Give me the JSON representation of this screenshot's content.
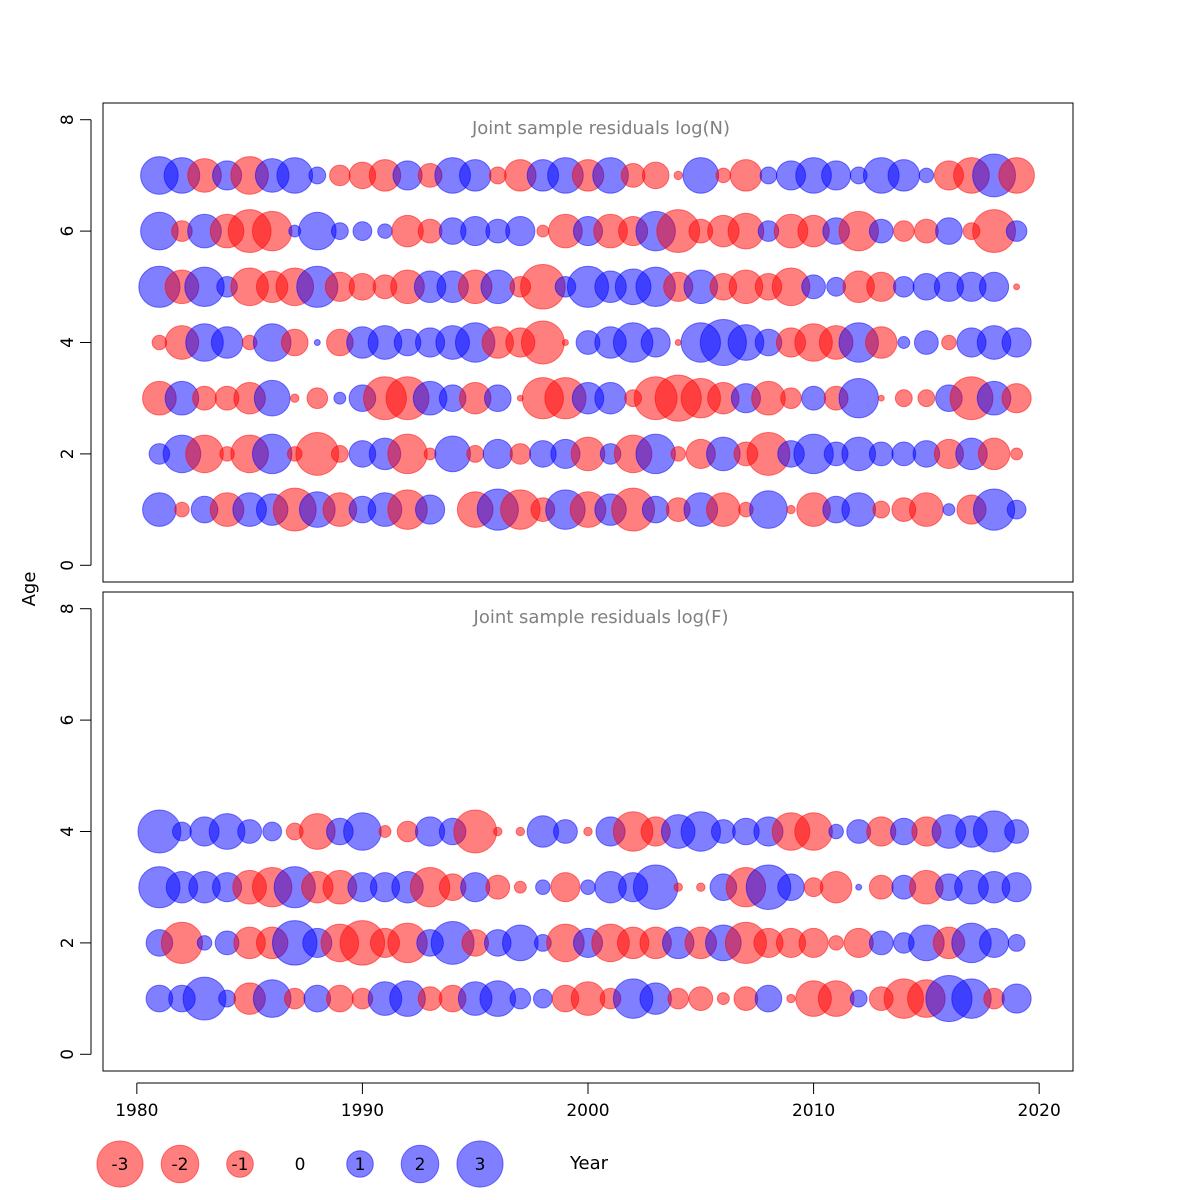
{
  "y_axis_label": "Age",
  "x_axis_label": "Year",
  "colors": {
    "negative": "#ff0000",
    "positive": "#0000ff",
    "bubble_opacity": 0.5,
    "title_color": "#808080"
  },
  "legend": {
    "items": [
      {
        "label": "-3",
        "value": -3
      },
      {
        "label": "-2",
        "value": -2
      },
      {
        "label": "-1",
        "value": -1
      },
      {
        "label": "0",
        "value": 0
      },
      {
        "label": "1",
        "value": 1
      },
      {
        "label": "2",
        "value": 2
      },
      {
        "label": "3",
        "value": 3
      }
    ]
  },
  "chart_data": [
    {
      "type": "scatter",
      "subtype": "bubble",
      "title": "Joint sample residuals log(N)",
      "xlabel": "Year",
      "ylabel": "Age",
      "xlim": [
        1978.5,
        2021.5
      ],
      "ylim": [
        -0.3,
        8.3
      ],
      "x_ticks": [
        1980,
        1990,
        2000,
        2010,
        2020
      ],
      "y_ticks": [
        0,
        2,
        4,
        6,
        8
      ],
      "x_tick_labels_shown": false,
      "years": [
        1981,
        1982,
        1983,
        1984,
        1985,
        1986,
        1987,
        1988,
        1989,
        1990,
        1991,
        1992,
        1993,
        1994,
        1995,
        1996,
        1997,
        1998,
        1999,
        2000,
        2001,
        2002,
        2003,
        2004,
        2005,
        2006,
        2007,
        2008,
        2009,
        2010,
        2011,
        2012,
        2013,
        2014,
        2015,
        2016,
        2017,
        2018,
        2019
      ],
      "ages": [
        1,
        2,
        3,
        4,
        5,
        6,
        7
      ],
      "residuals": {
        "1": [
          1.6,
          -0.3,
          1.0,
          -1.6,
          1.6,
          1.4,
          -2.6,
          1.8,
          -1.6,
          1.0,
          1.6,
          -2.2,
          1.2,
          0.0,
          -1.8,
          2.4,
          -2.2,
          -0.8,
          2.2,
          -1.8,
          1.4,
          -2.6,
          1.0,
          -0.8,
          1.6,
          -1.6,
          -0.3,
          2.0,
          -0.1,
          -1.6,
          1.0,
          1.6,
          -0.4,
          -0.8,
          -1.6,
          0.2,
          -1.2,
          2.4,
          0.5
        ],
        "2": [
          0.6,
          2.0,
          -2.0,
          -0.3,
          -2.0,
          2.2,
          -0.3,
          -2.6,
          -0.4,
          1.0,
          1.4,
          -2.2,
          -0.2,
          1.8,
          -0.4,
          1.2,
          -0.6,
          1.0,
          1.2,
          -1.6,
          0.6,
          -2.0,
          2.2,
          -0.3,
          -1.2,
          1.6,
          -0.8,
          -2.6,
          1.0,
          2.2,
          0.8,
          1.6,
          0.8,
          0.8,
          1.0,
          -1.2,
          1.4,
          -1.4,
          -0.2
        ],
        "3": [
          -1.6,
          1.6,
          -0.8,
          -0.8,
          -1.4,
          1.8,
          -0.1,
          -0.6,
          0.2,
          1.0,
          -2.6,
          -2.6,
          1.6,
          1.0,
          -1.4,
          1.0,
          -0.05,
          -2.4,
          -2.4,
          1.4,
          1.4,
          -0.4,
          -2.6,
          -3.0,
          -2.2,
          -1.4,
          1.2,
          -1.6,
          -0.6,
          0.8,
          -0.8,
          2.2,
          -0.05,
          -0.4,
          -0.4,
          1.0,
          -2.6,
          1.6,
          -1.2
        ],
        "4": [
          -0.3,
          -1.6,
          2.0,
          1.4,
          -0.3,
          2.0,
          -1.0,
          0.05,
          -1.0,
          1.4,
          1.6,
          1.0,
          1.2,
          1.6,
          2.2,
          -1.4,
          -1.2,
          -2.6,
          -0.05,
          0.8,
          1.4,
          2.2,
          1.2,
          -0.05,
          2.2,
          3.0,
          1.8,
          1.0,
          -1.2,
          -2.0,
          -1.6,
          2.2,
          -1.4,
          0.2,
          0.8,
          -0.3,
          1.2,
          1.6,
          1.2
        ],
        "5": [
          2.4,
          -1.6,
          2.2,
          0.6,
          -2.0,
          -1.4,
          -2.0,
          2.4,
          -1.2,
          -1.0,
          -0.8,
          -1.6,
          1.4,
          1.4,
          -1.6,
          1.6,
          -0.6,
          -2.8,
          0.6,
          2.4,
          1.4,
          1.8,
          2.2,
          -1.2,
          1.6,
          -1.0,
          -1.6,
          -1.0,
          -2.0,
          0.8,
          0.5,
          -1.4,
          -1.2,
          0.6,
          1.0,
          1.2,
          1.2,
          1.2,
          -0.05
        ],
        "6": [
          2.0,
          -0.6,
          1.6,
          -1.6,
          -2.6,
          -2.2,
          0.2,
          2.0,
          0.4,
          0.5,
          0.3,
          -1.4,
          -0.8,
          1.0,
          1.2,
          0.8,
          1.2,
          -0.2,
          -1.6,
          1.2,
          -1.6,
          -1.2,
          2.2,
          -2.6,
          -0.8,
          -1.4,
          -1.8,
          0.6,
          -1.6,
          -1.4,
          1.0,
          -2.2,
          0.8,
          -0.6,
          -0.8,
          1.0,
          -0.4,
          -2.6,
          0.6
        ],
        "7": [
          2.0,
          1.8,
          -1.6,
          1.2,
          -2.0,
          1.6,
          1.8,
          0.4,
          -0.6,
          -1.0,
          -1.4,
          1.2,
          -0.8,
          1.8,
          1.4,
          -0.4,
          -1.4,
          1.4,
          1.8,
          -1.4,
          1.8,
          -0.8,
          -1.0,
          -0.1,
          1.8,
          -0.3,
          -1.4,
          0.4,
          1.2,
          1.8,
          1.2,
          0.4,
          1.8,
          1.4,
          0.3,
          -1.2,
          -1.8,
          2.6,
          -1.8
        ]
      }
    },
    {
      "type": "scatter",
      "subtype": "bubble",
      "title": "Joint sample residuals log(F)",
      "xlabel": "Year",
      "ylabel": "Age",
      "xlim": [
        1978.5,
        2021.5
      ],
      "ylim": [
        -0.3,
        8.3
      ],
      "x_ticks": [
        1980,
        1990,
        2000,
        2010,
        2020
      ],
      "y_ticks": [
        0,
        2,
        4,
        6,
        8
      ],
      "x_tick_labels_shown": true,
      "years": [
        1981,
        1982,
        1983,
        1984,
        1985,
        1986,
        1987,
        1988,
        1989,
        1990,
        1991,
        1992,
        1993,
        1994,
        1995,
        1996,
        1997,
        1998,
        1999,
        2000,
        2001,
        2002,
        2003,
        2004,
        2005,
        2006,
        2007,
        2008,
        2009,
        2010,
        2011,
        2012,
        2013,
        2014,
        2015,
        2016,
        2017,
        2018,
        2019
      ],
      "ages": [
        1,
        2,
        3,
        4
      ],
      "residuals": {
        "1": [
          1.0,
          1.0,
          2.6,
          0.4,
          -1.4,
          2.0,
          -0.6,
          1.0,
          -1.0,
          -0.6,
          1.6,
          1.8,
          -0.8,
          -1.0,
          1.6,
          1.8,
          0.6,
          0.5,
          -1.0,
          -1.6,
          -0.6,
          2.2,
          1.4,
          -0.6,
          -0.8,
          -0.2,
          -0.8,
          1.0,
          -0.1,
          -1.8,
          -1.8,
          0.4,
          -0.8,
          -2.2,
          -2.0,
          3.0,
          2.2,
          -0.6,
          1.2
        ],
        "2": [
          1.0,
          -2.4,
          0.3,
          0.8,
          -1.4,
          -1.4,
          2.8,
          1.2,
          -2.0,
          -2.8,
          -1.2,
          -2.2,
          1.0,
          2.6,
          -1.0,
          1.0,
          1.8,
          0.4,
          -2.0,
          1.2,
          -2.0,
          -1.4,
          -1.4,
          1.4,
          -1.4,
          1.8,
          -2.4,
          -1.2,
          -1.2,
          -1.2,
          -0.3,
          -1.2,
          0.8,
          0.6,
          1.8,
          -1.4,
          2.2,
          1.2,
          0.4
        ],
        "3": [
          2.4,
          1.4,
          1.4,
          1.2,
          -1.6,
          -2.2,
          2.4,
          -1.4,
          -1.6,
          1.2,
          1.2,
          1.4,
          -2.2,
          -1.0,
          1.2,
          -0.8,
          -0.2,
          0.3,
          -1.2,
          0.3,
          1.4,
          1.2,
          2.8,
          -0.1,
          -0.1,
          1.0,
          -2.2,
          2.8,
          1.0,
          -0.5,
          -1.4,
          0.05,
          -0.8,
          0.8,
          -1.6,
          1.0,
          1.6,
          1.4,
          1.2
        ],
        "4": [
          2.6,
          0.5,
          1.2,
          1.8,
          0.8,
          0.5,
          -0.4,
          -1.8,
          1.0,
          2.0,
          -0.2,
          -0.6,
          1.2,
          1.0,
          -2.6,
          -0.1,
          -0.1,
          1.4,
          0.8,
          -0.1,
          1.2,
          -2.2,
          -1.2,
          1.6,
          2.2,
          0.8,
          1.0,
          1.2,
          -2.0,
          -2.0,
          0.3,
          0.8,
          -1.2,
          1.0,
          -1.2,
          1.6,
          1.4,
          2.4,
          0.8
        ]
      }
    }
  ]
}
